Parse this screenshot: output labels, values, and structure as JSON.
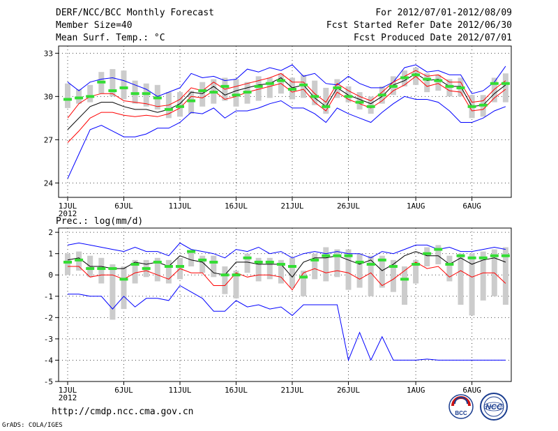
{
  "header": {
    "title": "DERF/NCC/BCC Monthly Forecast",
    "member_size": "Member Size=40",
    "variable": "Mean Surf. Temp.: °C",
    "forecast_period": "For 2012/07/01-2012/08/09",
    "start_refer_date": "Fcst Started Refer Date 2012/06/30",
    "produced_date": "Fcst Produced Date 2012/07/01"
  },
  "footer": {
    "url": "http://cmdp.ncc.cma.gov.cn",
    "credit": "GrADS: COLA/IGES"
  },
  "logos": {
    "bcc": "BCC",
    "ncc": "NCC"
  },
  "colors": {
    "ensemble_box": "#cccccc",
    "ensemble_mean": "#33dd33",
    "median": "#000000",
    "inner_bounds": "#ff0000",
    "outer_bounds": "#0000ff",
    "grid": "#444444"
  },
  "chart_data": [
    {
      "type": "line",
      "title": "Mean Surf. Temp.: °C",
      "xlabel": "",
      "ylabel": "°C",
      "ylim": [
        23,
        33.5
      ],
      "yticks": [
        24,
        27,
        30,
        33
      ],
      "xticks": [
        {
          "day": 1,
          "label": "1JUL",
          "sub": "2012"
        },
        {
          "day": 6,
          "label": "6JUL"
        },
        {
          "day": 11,
          "label": "11JUL"
        },
        {
          "day": 16,
          "label": "16JUL"
        },
        {
          "day": 21,
          "label": "21JUL"
        },
        {
          "day": 26,
          "label": "26JUL"
        },
        {
          "day": 32,
          "label": "1AUG"
        },
        {
          "day": 37,
          "label": "6AUG"
        }
      ],
      "x": [
        1,
        2,
        3,
        4,
        5,
        6,
        7,
        8,
        9,
        10,
        11,
        12,
        13,
        14,
        15,
        16,
        17,
        18,
        19,
        20,
        21,
        22,
        23,
        24,
        25,
        26,
        27,
        28,
        29,
        30,
        31,
        32,
        33,
        34,
        35,
        36,
        37,
        38,
        39,
        40
      ],
      "series": [
        {
          "name": "max",
          "color": "#0000ff",
          "values": [
            31.0,
            30.4,
            31.0,
            31.2,
            31.3,
            31.1,
            30.8,
            30.5,
            30.0,
            30.3,
            30.6,
            31.6,
            31.3,
            31.4,
            31.1,
            31.2,
            31.9,
            31.7,
            32.0,
            31.8,
            32.2,
            31.4,
            31.6,
            30.9,
            30.8,
            31.4,
            30.9,
            30.6,
            30.6,
            31.0,
            32.0,
            32.2,
            31.7,
            31.8,
            31.5,
            31.5,
            30.2,
            30.4,
            31.0,
            32.1
          ]
        },
        {
          "name": "p75",
          "color": "#ff0000",
          "values": [
            28.5,
            29.5,
            30.0,
            30.2,
            30.2,
            29.7,
            29.6,
            29.5,
            29.3,
            29.4,
            29.8,
            30.6,
            30.4,
            31.0,
            30.5,
            30.7,
            30.9,
            31.1,
            31.3,
            31.6,
            31.0,
            31.0,
            30.2,
            29.6,
            30.9,
            30.4,
            30.0,
            29.7,
            30.3,
            31.0,
            31.4,
            31.8,
            31.4,
            31.5,
            31.0,
            31.0,
            29.6,
            29.7,
            30.5,
            31.1
          ]
        },
        {
          "name": "median",
          "color": "#000000",
          "values": [
            27.7,
            28.5,
            29.3,
            29.6,
            29.6,
            29.3,
            29.1,
            29.1,
            28.9,
            29.1,
            29.5,
            30.3,
            30.2,
            30.7,
            30.1,
            30.4,
            30.6,
            30.8,
            30.9,
            31.3,
            30.6,
            30.8,
            29.9,
            29.3,
            30.6,
            30.1,
            29.8,
            29.5,
            30.0,
            30.8,
            31.1,
            31.6,
            31.1,
            31.2,
            30.7,
            30.7,
            29.3,
            29.4,
            30.2,
            30.8
          ]
        },
        {
          "name": "p25",
          "color": "#ff0000",
          "values": [
            26.8,
            27.6,
            28.5,
            28.9,
            28.9,
            28.7,
            28.6,
            28.7,
            28.6,
            28.8,
            29.2,
            30.0,
            29.9,
            30.4,
            29.8,
            30.0,
            30.3,
            30.5,
            30.7,
            30.9,
            30.3,
            30.5,
            29.6,
            29.0,
            30.3,
            29.8,
            29.5,
            29.2,
            29.7,
            30.4,
            30.8,
            31.4,
            30.7,
            30.9,
            30.4,
            30.3,
            29.0,
            29.1,
            29.9,
            30.5
          ]
        },
        {
          "name": "min",
          "color": "#0000ff",
          "values": [
            24.3,
            26.0,
            27.7,
            28.0,
            27.6,
            27.2,
            27.2,
            27.4,
            27.8,
            27.8,
            28.2,
            28.9,
            28.8,
            29.2,
            28.5,
            29.0,
            29.0,
            29.2,
            29.5,
            29.7,
            29.2,
            29.2,
            28.8,
            28.2,
            29.2,
            28.8,
            28.5,
            28.2,
            28.9,
            29.5,
            30.0,
            29.8,
            29.8,
            29.6,
            29.0,
            28.2,
            28.2,
            28.5,
            29.0,
            29.3
          ]
        }
      ],
      "ensemble_mean": [
        29.8,
        29.9,
        30.0,
        31.0,
        30.4,
        30.6,
        30.2,
        30.2,
        29.9,
        29.1,
        29.3,
        29.7,
        30.4,
        30.3,
        30.7,
        30.1,
        30.3,
        30.7,
        30.9,
        31.1,
        30.5,
        30.8,
        30.0,
        29.3,
        30.6,
        30.0,
        29.6,
        29.3,
        30.1,
        30.7,
        31.3,
        31.5,
        31.2,
        31.1,
        30.7,
        30.6,
        29.3,
        29.4,
        30.9,
        30.9
      ],
      "spread_boxes": [
        [
          29.2,
          30.9
        ],
        [
          29.5,
          30.5
        ],
        [
          29.6,
          30.8
        ],
        [
          30.2,
          31.7
        ],
        [
          30.0,
          31.9
        ],
        [
          29.8,
          31.8
        ],
        [
          29.5,
          31.1
        ],
        [
          29.3,
          30.9
        ],
        [
          29.1,
          30.8
        ],
        [
          28.5,
          30.3
        ],
        [
          28.6,
          30.3
        ],
        [
          28.8,
          30.4
        ],
        [
          29.3,
          31.0
        ],
        [
          29.5,
          31.2
        ],
        [
          29.7,
          31.3
        ],
        [
          29.3,
          31.2
        ],
        [
          29.5,
          31.0
        ],
        [
          29.7,
          31.4
        ],
        [
          29.9,
          31.3
        ],
        [
          30.2,
          31.6
        ],
        [
          29.8,
          31.3
        ],
        [
          29.9,
          31.5
        ],
        [
          29.4,
          31.1
        ],
        [
          28.8,
          30.6
        ],
        [
          29.9,
          31.2
        ],
        [
          29.6,
          30.7
        ],
        [
          29.1,
          30.3
        ],
        [
          28.8,
          30.0
        ],
        [
          29.5,
          30.7
        ],
        [
          30.1,
          31.4
        ],
        [
          30.7,
          31.8
        ],
        [
          30.8,
          32.0
        ],
        [
          30.3,
          31.6
        ],
        [
          30.4,
          31.5
        ],
        [
          30.0,
          31.2
        ],
        [
          30.0,
          31.3
        ],
        [
          28.5,
          30.1
        ],
        [
          28.6,
          30.1
        ],
        [
          29.6,
          31.3
        ],
        [
          29.6,
          31.6
        ]
      ]
    },
    {
      "type": "line",
      "title": "Prec.: log(mm/d)",
      "xlabel": "",
      "ylabel": "log(mm/d)",
      "ylim": [
        -5,
        2.2
      ],
      "yticks": [
        -5,
        -4,
        -3,
        -2,
        -1,
        0,
        1,
        2
      ],
      "xticks": [
        {
          "day": 1,
          "label": "1JUL",
          "sub": "2012"
        },
        {
          "day": 6,
          "label": "6JUL"
        },
        {
          "day": 11,
          "label": "11JUL"
        },
        {
          "day": 16,
          "label": "16JUL"
        },
        {
          "day": 21,
          "label": "21JUL"
        },
        {
          "day": 26,
          "label": "26JUL"
        },
        {
          "day": 32,
          "label": "1AUG"
        },
        {
          "day": 37,
          "label": "6AUG"
        }
      ],
      "x": [
        1,
        2,
        3,
        4,
        5,
        6,
        7,
        8,
        9,
        10,
        11,
        12,
        13,
        14,
        15,
        16,
        17,
        18,
        19,
        20,
        21,
        22,
        23,
        24,
        25,
        26,
        27,
        28,
        29,
        30,
        31,
        32,
        33,
        34,
        35,
        36,
        37,
        38,
        39,
        40
      ],
      "series": [
        {
          "name": "max",
          "color": "#0000ff",
          "values": [
            1.4,
            1.5,
            1.4,
            1.3,
            1.2,
            1.1,
            1.3,
            1.1,
            1.1,
            0.9,
            1.5,
            1.2,
            1.1,
            1.0,
            0.8,
            1.2,
            1.1,
            1.3,
            1.0,
            1.1,
            0.8,
            1.0,
            1.1,
            1.0,
            1.1,
            1.0,
            1.0,
            0.8,
            1.1,
            1.0,
            1.2,
            1.4,
            1.4,
            1.2,
            1.3,
            1.1,
            1.1,
            1.2,
            1.3,
            1.2
          ]
        },
        {
          "name": "p75",
          "color": "#000000",
          "values": [
            0.7,
            0.8,
            0.4,
            0.4,
            0.3,
            0.3,
            0.6,
            0.5,
            0.6,
            0.4,
            0.9,
            0.7,
            0.6,
            0.1,
            0.0,
            0.6,
            0.6,
            0.5,
            0.5,
            0.5,
            -0.1,
            0.6,
            0.8,
            0.8,
            0.9,
            0.7,
            0.5,
            0.7,
            0.2,
            0.5,
            0.9,
            1.1,
            0.9,
            0.9,
            0.5,
            0.8,
            0.5,
            0.7,
            0.8,
            0.6
          ]
        },
        {
          "name": "p25",
          "color": "#ff0000",
          "values": [
            0.4,
            0.4,
            -0.1,
            0.0,
            0.0,
            -0.2,
            0.1,
            0.2,
            0.0,
            -0.2,
            0.3,
            0.1,
            0.1,
            -0.5,
            -0.5,
            0.1,
            -0.1,
            0.0,
            0.0,
            -0.1,
            -0.7,
            0.1,
            0.3,
            0.1,
            0.2,
            0.1,
            -0.2,
            0.1,
            -0.5,
            -0.2,
            0.2,
            0.6,
            0.3,
            0.4,
            -0.1,
            0.2,
            -0.1,
            0.1,
            0.1,
            -0.4
          ]
        },
        {
          "name": "min",
          "color": "#0000ff",
          "values": [
            -0.9,
            -0.9,
            -1.0,
            -1.0,
            -1.6,
            -1.0,
            -1.5,
            -1.1,
            -1.1,
            -1.2,
            -0.5,
            -0.8,
            -1.1,
            -1.7,
            -1.7,
            -1.2,
            -1.5,
            -1.4,
            -1.6,
            -1.5,
            -1.9,
            -1.4,
            -1.4,
            -1.4,
            -1.4,
            -4.0,
            -2.7,
            -4.0,
            -2.9,
            -4.0,
            -4.0,
            -4.0,
            -3.95,
            -4.0,
            -4.0,
            -4.0,
            -4.0,
            -4.0,
            -4.0,
            -4.0
          ]
        }
      ],
      "ensemble_mean": [
        0.6,
        0.7,
        0.3,
        0.3,
        0.3,
        -0.2,
        0.5,
        0.3,
        0.6,
        0.4,
        0.4,
        1.1,
        0.7,
        0.6,
        0.0,
        0.0,
        0.8,
        0.6,
        0.6,
        0.5,
        0.4,
        -0.1,
        0.7,
        0.9,
        0.9,
        0.9,
        0.6,
        0.5,
        0.7,
        0.4,
        -0.2,
        0.5,
        1.0,
        1.2,
        0.5,
        0.9,
        0.8,
        0.8,
        0.9,
        0.9
      ],
      "spread_boxes": [
        [
          0.0,
          1.0
        ],
        [
          0.2,
          1.1
        ],
        [
          -0.1,
          0.9
        ],
        [
          -0.4,
          0.8
        ],
        [
          -2.1,
          0.5
        ],
        [
          -1.6,
          0.4
        ],
        [
          -0.4,
          0.7
        ],
        [
          -0.1,
          0.7
        ],
        [
          -0.3,
          0.8
        ],
        [
          -0.4,
          0.7
        ],
        [
          -0.2,
          0.8
        ],
        [
          0.4,
          1.1
        ],
        [
          0.1,
          0.9
        ],
        [
          -0.1,
          0.9
        ],
        [
          -0.9,
          0.4
        ],
        [
          -1.1,
          0.2
        ],
        [
          0.1,
          1.0
        ],
        [
          -0.3,
          0.8
        ],
        [
          -0.2,
          0.8
        ],
        [
          -0.4,
          0.7
        ],
        [
          -0.6,
          0.8
        ],
        [
          -1.0,
          0.2
        ],
        [
          -0.2,
          1.0
        ],
        [
          -0.3,
          1.3
        ],
        [
          -0.1,
          1.2
        ],
        [
          -0.7,
          1.2
        ],
        [
          -0.6,
          1.0
        ],
        [
          -1.0,
          0.9
        ],
        [
          -0.6,
          0.9
        ],
        [
          -0.8,
          0.7
        ],
        [
          -1.4,
          0.4
        ],
        [
          -0.4,
          0.7
        ],
        [
          0.4,
          1.3
        ],
        [
          0.5,
          1.4
        ],
        [
          -0.3,
          0.9
        ],
        [
          -1.4,
          1.0
        ],
        [
          -1.9,
          1.0
        ],
        [
          -1.2,
          1.1
        ],
        [
          -1.0,
          1.2
        ],
        [
          -1.4,
          1.3
        ]
      ]
    }
  ]
}
